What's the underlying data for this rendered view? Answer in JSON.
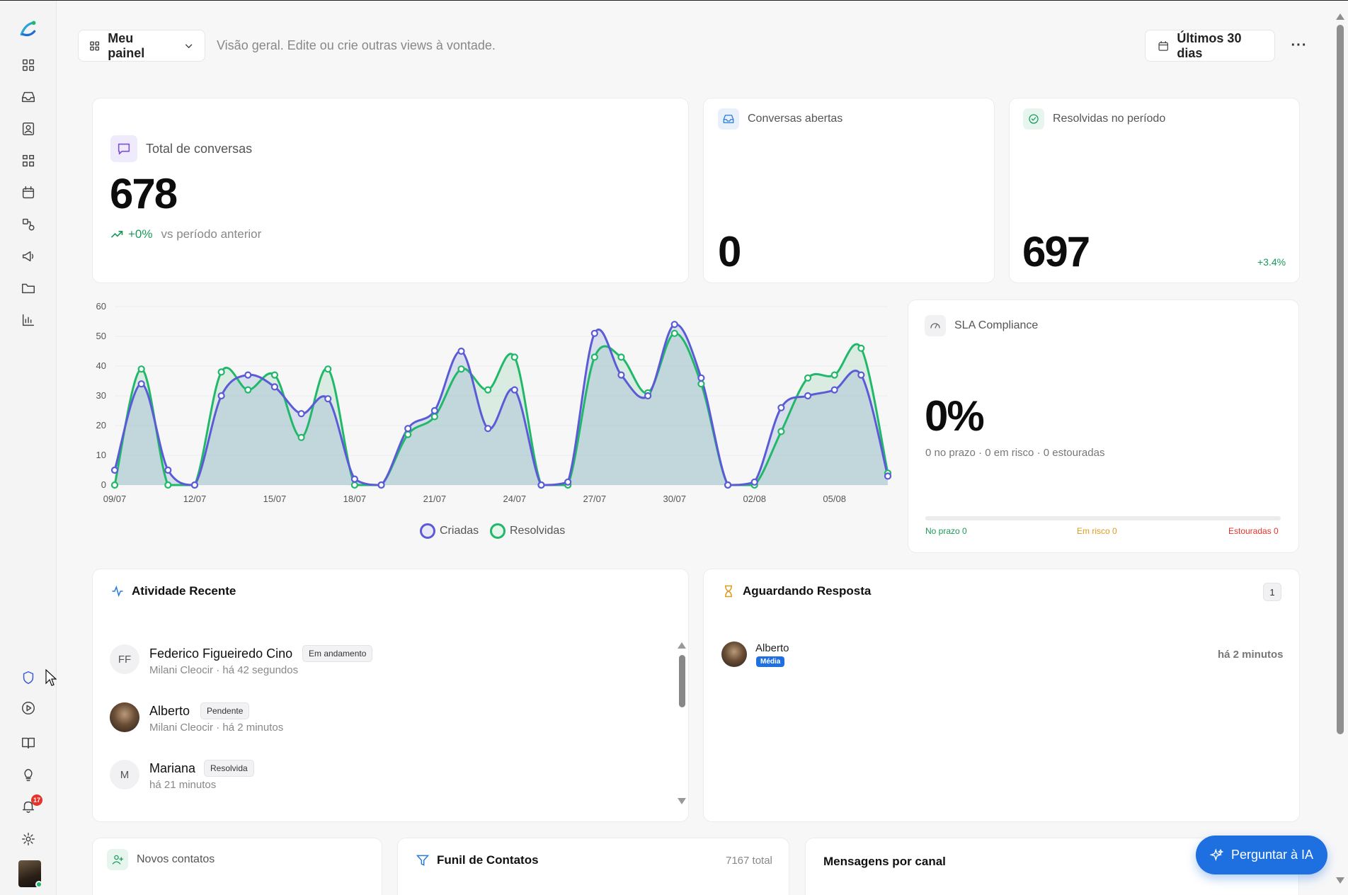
{
  "header": {
    "panel_label": "Meu painel",
    "subtitle": "Visão geral. Edite ou crie outras views à vontade.",
    "date_range": "Últimos 30 dias",
    "more": "···"
  },
  "sidebar": {
    "notification_count": "17",
    "items": [
      "dashboard-icon",
      "inbox-icon",
      "contacts-icon",
      "kanban-icon",
      "calendar-icon",
      "automation-icon",
      "campaign-icon",
      "folder-icon",
      "reports-icon"
    ],
    "bottom_items": [
      "shield-icon",
      "play-icon",
      "book-icon",
      "bulb-icon",
      "bell-icon",
      "gear-icon"
    ]
  },
  "cards": {
    "total": {
      "title": "Total de conversas",
      "value": "678",
      "delta": "+0%",
      "delta_label": "vs período anterior"
    },
    "open": {
      "title": "Conversas abertas",
      "value": "0"
    },
    "resolved": {
      "title": "Resolvidas no período",
      "value": "697",
      "delta": "+3.4%"
    },
    "sla": {
      "title": "SLA Compliance",
      "value": "0%",
      "detail": "0 no prazo · 0 em risco · 0 estouradas",
      "on_time": "No prazo 0",
      "at_risk": "Em risco 0",
      "breached": "Estouradas 0"
    }
  },
  "chart_data": {
    "type": "area",
    "x": [
      "09/07",
      "10/07",
      "11/07",
      "12/07",
      "13/07",
      "14/07",
      "15/07",
      "16/07",
      "17/07",
      "18/07",
      "19/07",
      "20/07",
      "21/07",
      "22/07",
      "23/07",
      "24/07",
      "25/07",
      "26/07",
      "27/07",
      "28/07",
      "29/07",
      "30/07",
      "31/07",
      "01/08",
      "02/08",
      "03/08",
      "04/08",
      "05/08",
      "06/08",
      "07/08"
    ],
    "tick_labels": [
      "09/07",
      "12/07",
      "15/07",
      "18/07",
      "21/07",
      "24/07",
      "27/07",
      "30/07",
      "02/08",
      "05/08"
    ],
    "yticks": [
      0,
      10,
      20,
      30,
      40,
      50,
      60
    ],
    "ylim": [
      0,
      60
    ],
    "grid": true,
    "legend_position": "bottom",
    "series": [
      {
        "name": "Criadas",
        "color": "#5b5bd6",
        "values": [
          5,
          34,
          5,
          0,
          30,
          37,
          33,
          24,
          29,
          2,
          0,
          19,
          25,
          45,
          19,
          32,
          0,
          1,
          51,
          37,
          30,
          54,
          36,
          0,
          1,
          26,
          30,
          32,
          37,
          3
        ]
      },
      {
        "name": "Resolvidas",
        "color": "#22b86a",
        "values": [
          0,
          39,
          0,
          0,
          38,
          32,
          37,
          16,
          39,
          0,
          0,
          17,
          23,
          39,
          32,
          43,
          0,
          0,
          43,
          43,
          31,
          51,
          34,
          0,
          0,
          18,
          36,
          37,
          46,
          4
        ]
      }
    ]
  },
  "activity": {
    "title": "Atividade Recente",
    "items": [
      {
        "initials": "FF",
        "name": "Federico Figueiredo Cino",
        "status": "Em andamento",
        "meta": "Milani Cleocir · há 42 segundos"
      },
      {
        "initials": "",
        "name": "Alberto",
        "status": "Pendente",
        "meta": "Milani Cleocir · há 2 minutos"
      },
      {
        "initials": "M",
        "name": "Mariana",
        "status": "Resolvida",
        "meta": "há 21 minutos"
      }
    ]
  },
  "waiting": {
    "title": "Aguardando Resposta",
    "count": "1",
    "items": [
      {
        "name": "Alberto",
        "priority": "Média",
        "time": "há 2 minutos"
      }
    ]
  },
  "bottom": {
    "new_contacts": "Novos contatos",
    "funnel": "Funil de Contatos",
    "funnel_total": "7167 total",
    "by_channel": "Mensagens por canal"
  },
  "ask_ai": "Perguntar à IA",
  "colors": {
    "accent": "#1e6fe0",
    "created": "#5b5bd6",
    "resolved": "#22b86a",
    "at_risk": "#e09a1e",
    "breached": "#e5332a"
  }
}
